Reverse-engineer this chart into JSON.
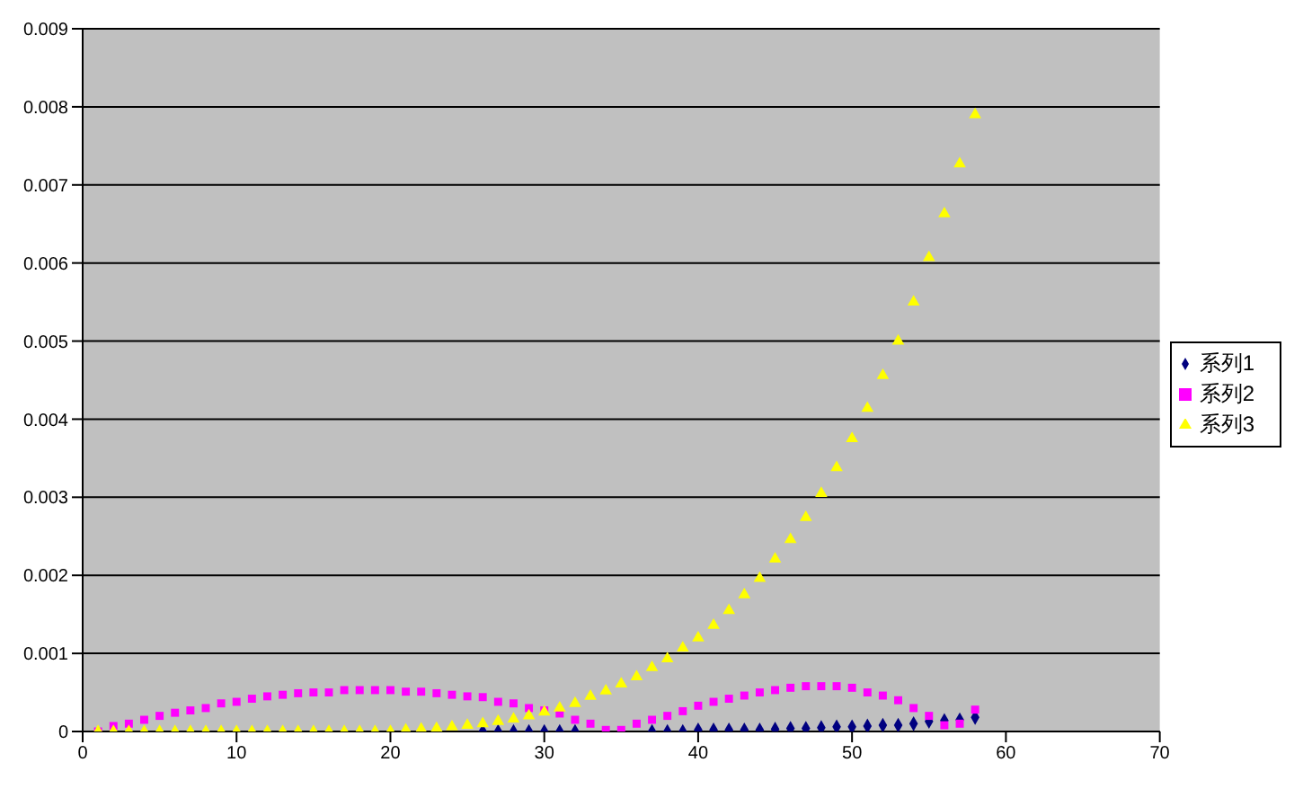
{
  "chart_data": {
    "type": "scatter",
    "x": [
      1,
      2,
      3,
      4,
      5,
      6,
      7,
      8,
      9,
      10,
      11,
      12,
      13,
      14,
      15,
      16,
      17,
      18,
      19,
      20,
      21,
      22,
      23,
      24,
      25,
      26,
      27,
      28,
      29,
      30,
      31,
      32,
      33,
      34,
      35,
      36,
      37,
      38,
      39,
      40,
      41,
      42,
      43,
      44,
      45,
      46,
      47,
      48,
      49,
      50,
      51,
      52,
      53,
      54,
      55,
      56,
      57,
      58
    ],
    "series": [
      {
        "name": "系列1",
        "color": "#000080",
        "marker": "diamond",
        "values": [
          null,
          null,
          null,
          null,
          null,
          null,
          null,
          null,
          null,
          null,
          null,
          null,
          null,
          null,
          null,
          null,
          null,
          null,
          null,
          null,
          null,
          null,
          null,
          null,
          null,
          0,
          0,
          0,
          0,
          0,
          0,
          0,
          null,
          null,
          null,
          null,
          0,
          0,
          0,
          2e-05,
          2e-05,
          2e-05,
          2e-05,
          2e-05,
          3e-05,
          4e-05,
          4e-05,
          5e-05,
          6e-05,
          6e-05,
          7e-05,
          8e-05,
          8e-05,
          0.0001,
          0.00013,
          0.00014,
          0.00015,
          0.00018
        ]
      },
      {
        "name": "系列2",
        "color": "#ff00ff",
        "marker": "square",
        "values": [
          0,
          7e-05,
          0.0001,
          0.00015,
          0.0002,
          0.00024,
          0.00027,
          0.0003,
          0.00036,
          0.00038,
          0.00042,
          0.00045,
          0.00047,
          0.00049,
          0.0005,
          0.0005,
          0.00053,
          0.00053,
          0.00053,
          0.00053,
          0.00051,
          0.00051,
          0.00049,
          0.00047,
          0.00045,
          0.00044,
          0.00038,
          0.00036,
          0.0003,
          0.00027,
          0.00023,
          0.00015,
          0.0001,
          2e-05,
          2e-05,
          0.0001,
          0.00015,
          0.0002,
          0.00026,
          0.00033,
          0.00038,
          0.00042,
          0.00046,
          0.0005,
          0.00053,
          0.00056,
          0.00058,
          0.00058,
          0.00058,
          0.00056,
          0.0005,
          0.00046,
          0.0004,
          0.0003,
          0.0002,
          8e-05,
          0.0001,
          0.00028
        ]
      },
      {
        "name": "系列3",
        "color": "#ffff00",
        "marker": "triangle",
        "values": [
          0,
          0,
          0,
          0,
          0,
          0,
          0,
          0,
          0,
          0,
          0,
          0,
          0,
          0,
          0,
          0,
          0,
          0,
          0,
          0,
          2e-05,
          3e-05,
          4e-05,
          6e-05,
          8e-05,
          0.0001,
          0.00013,
          0.00016,
          0.0002,
          0.00025,
          0.0003,
          0.00036,
          0.00045,
          0.00052,
          0.00061,
          0.0007,
          0.00082,
          0.00093,
          0.00107,
          0.0012,
          0.00136,
          0.00155,
          0.00175,
          0.00196,
          0.00221,
          0.00246,
          0.00274,
          0.00305,
          0.00338,
          0.00375,
          0.00414,
          0.00456,
          0.005,
          0.0055,
          0.00607,
          0.00663,
          0.00727,
          0.0079
        ]
      }
    ],
    "xlim": [
      0,
      70
    ],
    "xticks": [
      0,
      10,
      20,
      30,
      40,
      50,
      60,
      70
    ],
    "ylim": [
      0,
      0.009
    ],
    "yticks": [
      0,
      0.001,
      0.002,
      0.003,
      0.004,
      0.005,
      0.006,
      0.007,
      0.008,
      0.009
    ],
    "grid": "y",
    "legend": "right"
  }
}
